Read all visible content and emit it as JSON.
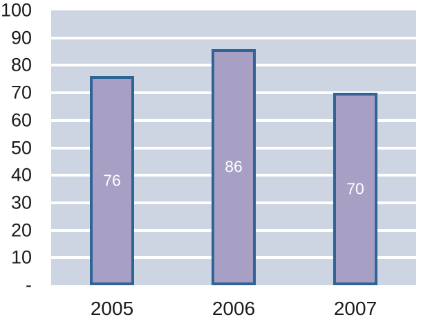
{
  "chart_data": {
    "type": "bar",
    "title": "",
    "xlabel": "",
    "ylabel": "",
    "categories": [
      "2005",
      "2006",
      "2007"
    ],
    "values": [
      76,
      86,
      70
    ],
    "bar_labels": [
      "76",
      "86",
      "70"
    ],
    "ylim": [
      0,
      100
    ],
    "y_ticks": [
      {
        "value": 0,
        "label": "-"
      },
      {
        "value": 10,
        "label": "10"
      },
      {
        "value": 20,
        "label": "20"
      },
      {
        "value": 30,
        "label": "30"
      },
      {
        "value": 40,
        "label": "40"
      },
      {
        "value": 50,
        "label": "50"
      },
      {
        "value": 60,
        "label": "60"
      },
      {
        "value": 70,
        "label": "70"
      },
      {
        "value": 80,
        "label": "80"
      },
      {
        "value": 90,
        "label": "90"
      },
      {
        "value": 100,
        "label": "100"
      }
    ],
    "grid": true,
    "legend": "none",
    "colors": {
      "page_background": "#ffffff",
      "plot_background": "#cdd5e2",
      "gridline": "#ffffff",
      "bar_fill": "#a7a0c4",
      "bar_border": "#2e6496",
      "bar_label_text": "#ffffff",
      "axis_label_text": "#1a1a1a"
    }
  }
}
